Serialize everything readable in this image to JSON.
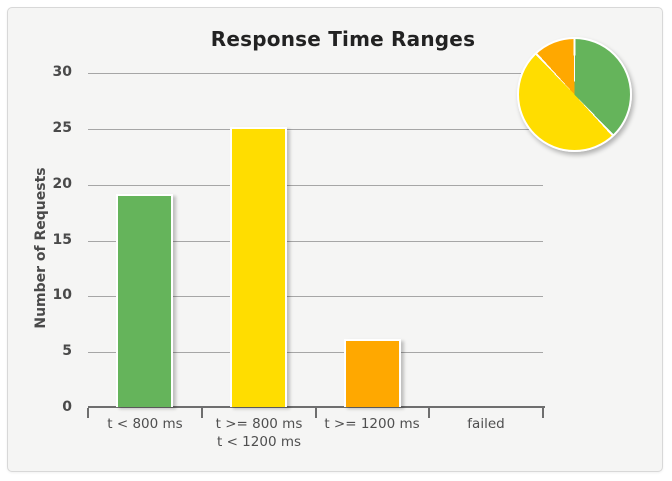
{
  "chart_data": {
    "type": "bar",
    "title": "Response Time Ranges",
    "ylabel": "Number of Requests",
    "xlabel": "",
    "categories_lines": [
      [
        "t < 800 ms"
      ],
      [
        "t >= 800 ms",
        "t < 1200 ms"
      ],
      [
        "t >= 1200 ms"
      ],
      [
        "failed"
      ]
    ],
    "values": [
      19,
      25,
      6,
      0
    ],
    "bar_colors": [
      "#65b45b",
      "#ffdd00",
      "#ffa800",
      "#cccccc"
    ],
    "ylim": [
      0,
      30
    ],
    "yticks": [
      0,
      5,
      10,
      15,
      20,
      25,
      30
    ],
    "grid": true,
    "legend_position": "none",
    "pie_overlay": {
      "type": "pie",
      "position": "top-right",
      "values": [
        19,
        25,
        6
      ],
      "colors": [
        "#65b45b",
        "#ffdd00",
        "#ffa800"
      ],
      "start_angle_deg": 0,
      "direction": "clockwise"
    },
    "style_colors": {
      "card_background": "#f5f5f4",
      "card_border": "#d8d8d8",
      "gridline": "#a6a6a6",
      "axis": "#6e6e6e",
      "tick_text": "#4a4a4a",
      "label_text": "#4f4f4f",
      "title_text": "#222222"
    }
  }
}
